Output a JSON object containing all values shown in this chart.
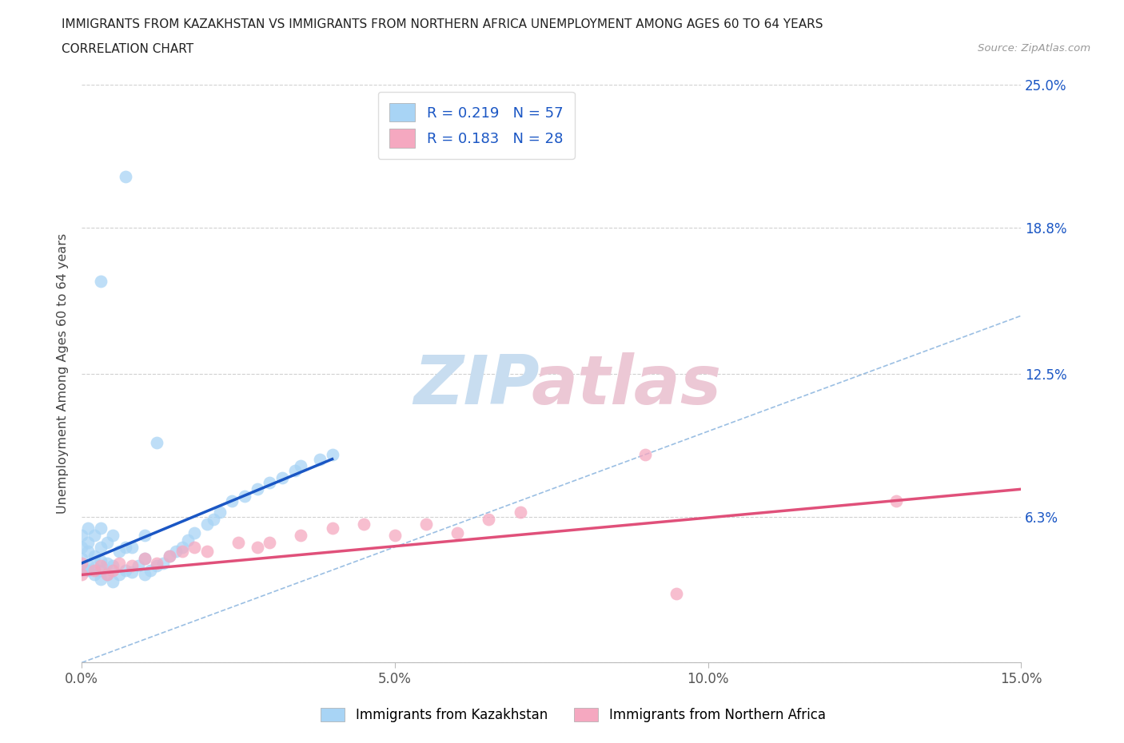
{
  "title_line1": "IMMIGRANTS FROM KAZAKHSTAN VS IMMIGRANTS FROM NORTHERN AFRICA UNEMPLOYMENT AMONG AGES 60 TO 64 YEARS",
  "title_line2": "CORRELATION CHART",
  "source": "Source: ZipAtlas.com",
  "ylabel": "Unemployment Among Ages 60 to 64 years",
  "xlim": [
    0.0,
    0.15
  ],
  "ylim": [
    0.0,
    0.25
  ],
  "xticks": [
    0.0,
    0.05,
    0.1,
    0.15
  ],
  "xtick_labels": [
    "0.0%",
    "5.0%",
    "10.0%",
    "15.0%"
  ],
  "ytick_positions": [
    0.0,
    0.063,
    0.125,
    0.188,
    0.25
  ],
  "ytick_labels": [
    "",
    "6.3%",
    "12.5%",
    "18.8%",
    "25.0%"
  ],
  "R_kaz": 0.219,
  "N_kaz": 57,
  "R_nafr": 0.183,
  "N_nafr": 28,
  "kaz_color": "#a8d4f5",
  "nafr_color": "#f5a8c0",
  "kaz_line_color": "#1a56c4",
  "nafr_line_color": "#e0507a",
  "legend_label_kaz": "Immigrants from Kazakhstan",
  "legend_label_nafr": "Immigrants from Northern Africa",
  "kaz_line": [
    0.0,
    0.04,
    0.043,
    0.088
  ],
  "nafr_line": [
    0.0,
    0.15,
    0.038,
    0.075
  ],
  "diag_line": [
    0.0,
    0.15,
    0.0,
    0.15
  ],
  "kaz_x": [
    0.0,
    0.0,
    0.0,
    0.0,
    0.001,
    0.001,
    0.001,
    0.001,
    0.001,
    0.002,
    0.002,
    0.002,
    0.002,
    0.003,
    0.003,
    0.003,
    0.003,
    0.003,
    0.004,
    0.004,
    0.004,
    0.005,
    0.005,
    0.005,
    0.006,
    0.006,
    0.007,
    0.007,
    0.008,
    0.008,
    0.009,
    0.01,
    0.01,
    0.01,
    0.011,
    0.012,
    0.013,
    0.014,
    0.015,
    0.016,
    0.017,
    0.018,
    0.02,
    0.021,
    0.022,
    0.024,
    0.026,
    0.028,
    0.03,
    0.032,
    0.034,
    0.035,
    0.038,
    0.04,
    0.003,
    0.007,
    0.012
  ],
  "kaz_y": [
    0.04,
    0.045,
    0.05,
    0.055,
    0.04,
    0.042,
    0.048,
    0.052,
    0.058,
    0.038,
    0.041,
    0.046,
    0.055,
    0.036,
    0.04,
    0.044,
    0.05,
    0.058,
    0.038,
    0.043,
    0.052,
    0.035,
    0.042,
    0.055,
    0.038,
    0.048,
    0.04,
    0.05,
    0.039,
    0.05,
    0.042,
    0.038,
    0.045,
    0.055,
    0.04,
    0.042,
    0.043,
    0.046,
    0.048,
    0.05,
    0.053,
    0.056,
    0.06,
    0.062,
    0.065,
    0.07,
    0.072,
    0.075,
    0.078,
    0.08,
    0.083,
    0.085,
    0.088,
    0.09,
    0.165,
    0.21,
    0.095
  ],
  "nafr_x": [
    0.0,
    0.0,
    0.002,
    0.003,
    0.004,
    0.005,
    0.006,
    0.008,
    0.01,
    0.012,
    0.014,
    0.016,
    0.018,
    0.02,
    0.025,
    0.028,
    0.03,
    0.035,
    0.04,
    0.045,
    0.05,
    0.055,
    0.06,
    0.065,
    0.07,
    0.09,
    0.095,
    0.13
  ],
  "nafr_y": [
    0.038,
    0.043,
    0.04,
    0.042,
    0.038,
    0.04,
    0.043,
    0.042,
    0.045,
    0.043,
    0.046,
    0.048,
    0.05,
    0.048,
    0.052,
    0.05,
    0.052,
    0.055,
    0.058,
    0.06,
    0.055,
    0.06,
    0.056,
    0.062,
    0.065,
    0.09,
    0.03,
    0.07
  ]
}
